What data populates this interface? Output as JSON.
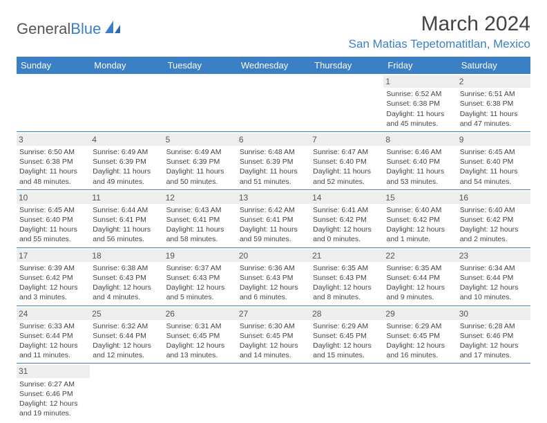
{
  "logo": {
    "text1": "General",
    "text2": "Blue"
  },
  "title": "March 2024",
  "location": "San Matias Tepetomatitlan, Mexico",
  "colors": {
    "header_bg": "#3b7fc4",
    "header_fg": "#ffffff",
    "accent": "#3b7fc4",
    "daynum_bg": "#eeeeee",
    "text": "#444444"
  },
  "weekdays": [
    "Sunday",
    "Monday",
    "Tuesday",
    "Wednesday",
    "Thursday",
    "Friday",
    "Saturday"
  ],
  "weeks": [
    [
      null,
      null,
      null,
      null,
      null,
      {
        "d": "1",
        "sr": "6:52 AM",
        "ss": "6:38 PM",
        "dl": "11 hours and 45 minutes."
      },
      {
        "d": "2",
        "sr": "6:51 AM",
        "ss": "6:38 PM",
        "dl": "11 hours and 47 minutes."
      }
    ],
    [
      {
        "d": "3",
        "sr": "6:50 AM",
        "ss": "6:38 PM",
        "dl": "11 hours and 48 minutes."
      },
      {
        "d": "4",
        "sr": "6:49 AM",
        "ss": "6:39 PM",
        "dl": "11 hours and 49 minutes."
      },
      {
        "d": "5",
        "sr": "6:49 AM",
        "ss": "6:39 PM",
        "dl": "11 hours and 50 minutes."
      },
      {
        "d": "6",
        "sr": "6:48 AM",
        "ss": "6:39 PM",
        "dl": "11 hours and 51 minutes."
      },
      {
        "d": "7",
        "sr": "6:47 AM",
        "ss": "6:40 PM",
        "dl": "11 hours and 52 minutes."
      },
      {
        "d": "8",
        "sr": "6:46 AM",
        "ss": "6:40 PM",
        "dl": "11 hours and 53 minutes."
      },
      {
        "d": "9",
        "sr": "6:45 AM",
        "ss": "6:40 PM",
        "dl": "11 hours and 54 minutes."
      }
    ],
    [
      {
        "d": "10",
        "sr": "6:45 AM",
        "ss": "6:40 PM",
        "dl": "11 hours and 55 minutes."
      },
      {
        "d": "11",
        "sr": "6:44 AM",
        "ss": "6:41 PM",
        "dl": "11 hours and 56 minutes."
      },
      {
        "d": "12",
        "sr": "6:43 AM",
        "ss": "6:41 PM",
        "dl": "11 hours and 58 minutes."
      },
      {
        "d": "13",
        "sr": "6:42 AM",
        "ss": "6:41 PM",
        "dl": "11 hours and 59 minutes."
      },
      {
        "d": "14",
        "sr": "6:41 AM",
        "ss": "6:42 PM",
        "dl": "12 hours and 0 minutes."
      },
      {
        "d": "15",
        "sr": "6:40 AM",
        "ss": "6:42 PM",
        "dl": "12 hours and 1 minute."
      },
      {
        "d": "16",
        "sr": "6:40 AM",
        "ss": "6:42 PM",
        "dl": "12 hours and 2 minutes."
      }
    ],
    [
      {
        "d": "17",
        "sr": "6:39 AM",
        "ss": "6:42 PM",
        "dl": "12 hours and 3 minutes."
      },
      {
        "d": "18",
        "sr": "6:38 AM",
        "ss": "6:43 PM",
        "dl": "12 hours and 4 minutes."
      },
      {
        "d": "19",
        "sr": "6:37 AM",
        "ss": "6:43 PM",
        "dl": "12 hours and 5 minutes."
      },
      {
        "d": "20",
        "sr": "6:36 AM",
        "ss": "6:43 PM",
        "dl": "12 hours and 6 minutes."
      },
      {
        "d": "21",
        "sr": "6:35 AM",
        "ss": "6:43 PM",
        "dl": "12 hours and 8 minutes."
      },
      {
        "d": "22",
        "sr": "6:35 AM",
        "ss": "6:44 PM",
        "dl": "12 hours and 9 minutes."
      },
      {
        "d": "23",
        "sr": "6:34 AM",
        "ss": "6:44 PM",
        "dl": "12 hours and 10 minutes."
      }
    ],
    [
      {
        "d": "24",
        "sr": "6:33 AM",
        "ss": "6:44 PM",
        "dl": "12 hours and 11 minutes."
      },
      {
        "d": "25",
        "sr": "6:32 AM",
        "ss": "6:44 PM",
        "dl": "12 hours and 12 minutes."
      },
      {
        "d": "26",
        "sr": "6:31 AM",
        "ss": "6:45 PM",
        "dl": "12 hours and 13 minutes."
      },
      {
        "d": "27",
        "sr": "6:30 AM",
        "ss": "6:45 PM",
        "dl": "12 hours and 14 minutes."
      },
      {
        "d": "28",
        "sr": "6:29 AM",
        "ss": "6:45 PM",
        "dl": "12 hours and 15 minutes."
      },
      {
        "d": "29",
        "sr": "6:29 AM",
        "ss": "6:45 PM",
        "dl": "12 hours and 16 minutes."
      },
      {
        "d": "30",
        "sr": "6:28 AM",
        "ss": "6:46 PM",
        "dl": "12 hours and 17 minutes."
      }
    ],
    [
      {
        "d": "31",
        "sr": "6:27 AM",
        "ss": "6:46 PM",
        "dl": "12 hours and 19 minutes."
      },
      null,
      null,
      null,
      null,
      null,
      null
    ]
  ],
  "labels": {
    "sunrise": "Sunrise: ",
    "sunset": "Sunset: ",
    "daylight": "Daylight: "
  }
}
